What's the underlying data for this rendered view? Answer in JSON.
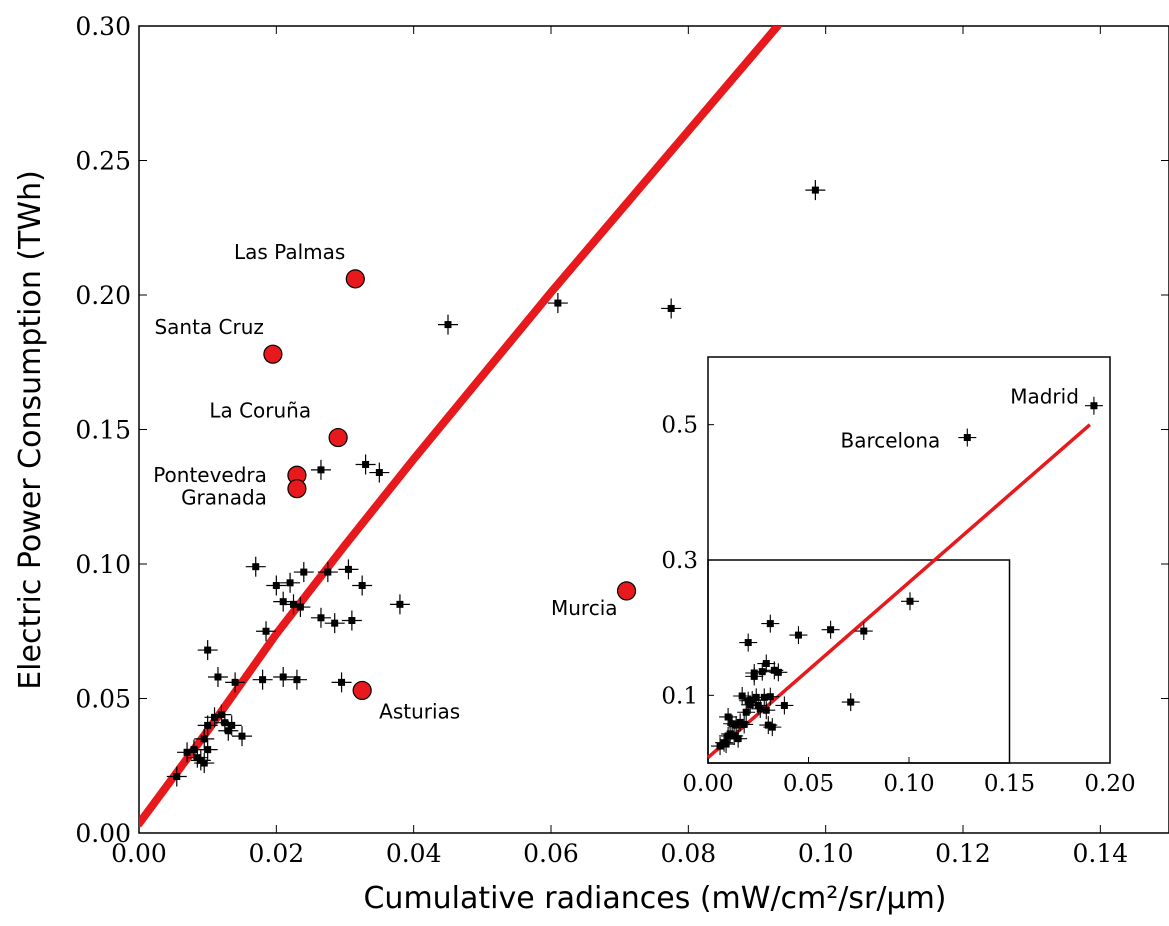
{
  "chart_data": [
    {
      "type": "scatter",
      "title": "",
      "xlabel": "Cumulative radiances (mW/cm²/sr/μm)",
      "ylabel": "Electric Power Consumption (TWh)",
      "xlim": [
        0.0,
        0.15
      ],
      "ylim": [
        0.0,
        0.3
      ],
      "x_ticks": [
        "0.00",
        "0.02",
        "0.04",
        "0.06",
        "0.08",
        "0.10",
        "0.12",
        "0.14"
      ],
      "y_ticks": [
        "0.00",
        "0.05",
        "0.10",
        "0.15",
        "0.20",
        "0.25",
        "0.30"
      ],
      "grid": false,
      "series": [
        {
          "marker": "square-with-error-bars",
          "color": "#000000",
          "points": [
            [
              0.0055,
              0.021
            ],
            [
              0.007,
              0.03
            ],
            [
              0.008,
              0.031
            ],
            [
              0.0085,
              0.028
            ],
            [
              0.009,
              0.027
            ],
            [
              0.0095,
              0.026
            ],
            [
              0.0095,
              0.035
            ],
            [
              0.01,
              0.031
            ],
            [
              0.01,
              0.04
            ],
            [
              0.01,
              0.068
            ],
            [
              0.011,
              0.043
            ],
            [
              0.0115,
              0.058
            ],
            [
              0.012,
              0.044
            ],
            [
              0.0125,
              0.041
            ],
            [
              0.013,
              0.038
            ],
            [
              0.0135,
              0.04
            ],
            [
              0.014,
              0.056
            ],
            [
              0.015,
              0.036
            ],
            [
              0.017,
              0.099
            ],
            [
              0.018,
              0.057
            ],
            [
              0.0185,
              0.075
            ],
            [
              0.02,
              0.092
            ],
            [
              0.021,
              0.058
            ],
            [
              0.021,
              0.086
            ],
            [
              0.022,
              0.093
            ],
            [
              0.0225,
              0.085
            ],
            [
              0.023,
              0.057
            ],
            [
              0.0235,
              0.084
            ],
            [
              0.024,
              0.097
            ],
            [
              0.0265,
              0.08
            ],
            [
              0.0265,
              0.135
            ],
            [
              0.0275,
              0.097
            ],
            [
              0.0285,
              0.078
            ],
            [
              0.0295,
              0.056
            ],
            [
              0.0305,
              0.098
            ],
            [
              0.031,
              0.079
            ],
            [
              0.0325,
              0.092
            ],
            [
              0.033,
              0.137
            ],
            [
              0.035,
              0.134
            ],
            [
              0.038,
              0.085
            ],
            [
              0.045,
              0.189
            ],
            [
              0.061,
              0.197
            ],
            [
              0.0775,
              0.195
            ],
            [
              0.0985,
              0.239
            ]
          ]
        },
        {
          "marker": "red-circle",
          "color": "#e8191c",
          "points": [
            {
              "label": "Las Palmas",
              "x": 0.0315,
              "y": 0.206
            },
            {
              "label": "Santa Cruz",
              "x": 0.0195,
              "y": 0.178
            },
            {
              "label": "La Coruña",
              "x": 0.029,
              "y": 0.147
            },
            {
              "label": "Pontevedra",
              "x": 0.023,
              "y": 0.133
            },
            {
              "label": "Granada",
              "x": 0.023,
              "y": 0.128
            },
            {
              "label": "Murcia",
              "x": 0.071,
              "y": 0.09
            },
            {
              "label": "Asturias",
              "x": 0.0325,
              "y": 0.053
            }
          ]
        },
        {
          "type": "line",
          "color": "#e8191c",
          "points": [
            [
              0.0,
              0.0035
            ],
            [
              0.01,
              0.038
            ],
            [
              0.02,
              0.074
            ],
            [
              0.03,
              0.107
            ],
            [
              0.04,
              0.139
            ],
            [
              0.05,
              0.17
            ],
            [
              0.06,
              0.201
            ],
            [
              0.07,
              0.231
            ],
            [
              0.08,
              0.261
            ],
            [
              0.093,
              0.3
            ]
          ]
        }
      ]
    },
    {
      "type": "scatter",
      "title": "",
      "xlim": [
        0.0,
        0.2
      ],
      "ylim": [
        0.0,
        0.6
      ],
      "x_ticks": [
        "0.00",
        "0.05",
        "0.10",
        "0.15",
        "0.20"
      ],
      "y_ticks": [
        "0.1",
        "0.3",
        "0.5"
      ],
      "zoom_box": {
        "x": [
          0.0,
          0.15
        ],
        "y": [
          0.0,
          0.3
        ]
      },
      "series": [
        {
          "marker": "square-with-error-bars",
          "color": "#000000",
          "points": [
            [
              0.006,
              0.025
            ],
            [
              0.008,
              0.03
            ],
            [
              0.009,
              0.028
            ],
            [
              0.01,
              0.04
            ],
            [
              0.01,
              0.068
            ],
            [
              0.011,
              0.043
            ],
            [
              0.012,
              0.058
            ],
            [
              0.013,
              0.04
            ],
            [
              0.014,
              0.056
            ],
            [
              0.015,
              0.036
            ],
            [
              0.016,
              0.06
            ],
            [
              0.017,
              0.099
            ],
            [
              0.018,
              0.057
            ],
            [
              0.019,
              0.075
            ],
            [
              0.02,
              0.092
            ],
            [
              0.02,
              0.178
            ],
            [
              0.021,
              0.086
            ],
            [
              0.022,
              0.093
            ],
            [
              0.023,
              0.128
            ],
            [
              0.023,
              0.133
            ],
            [
              0.024,
              0.097
            ],
            [
              0.025,
              0.085
            ],
            [
              0.026,
              0.08
            ],
            [
              0.027,
              0.135
            ],
            [
              0.028,
              0.097
            ],
            [
              0.029,
              0.147
            ],
            [
              0.029,
              0.078
            ],
            [
              0.03,
              0.056
            ],
            [
              0.031,
              0.098
            ],
            [
              0.031,
              0.206
            ],
            [
              0.032,
              0.053
            ],
            [
              0.033,
              0.137
            ],
            [
              0.035,
              0.134
            ],
            [
              0.038,
              0.085
            ],
            [
              0.045,
              0.189
            ],
            [
              0.061,
              0.197
            ],
            [
              0.071,
              0.09
            ],
            [
              0.0775,
              0.195
            ],
            [
              0.1005,
              0.239
            ],
            {
              "label": "Barcelona",
              "x": 0.129,
              "y": 0.481
            },
            {
              "label": "Madrid",
              "x": 0.192,
              "y": 0.528
            }
          ]
        },
        {
          "type": "line",
          "color": "#e8191c",
          "points": [
            [
              0.0,
              0.008
            ],
            [
              0.19,
              0.5
            ]
          ]
        }
      ]
    }
  ]
}
